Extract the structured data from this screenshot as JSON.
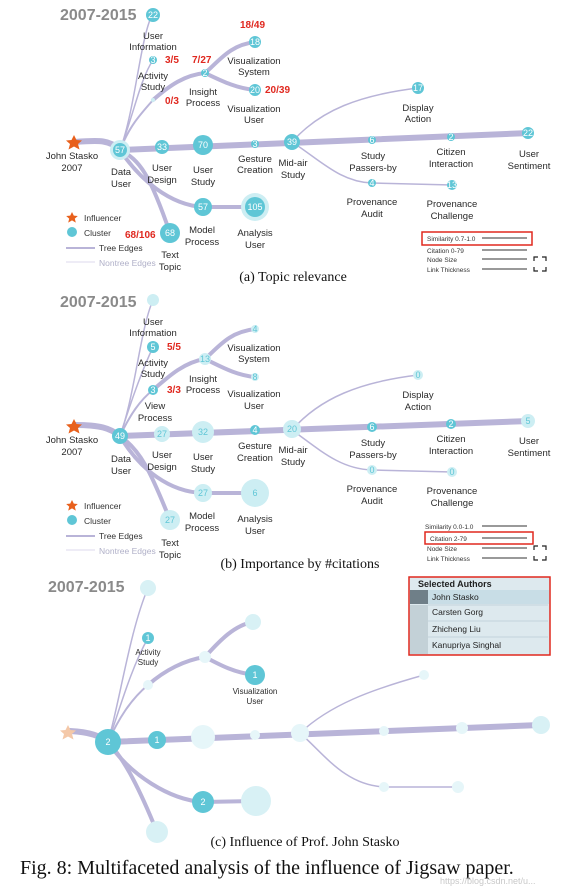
{
  "figure_caption": "Fig. 8: Multifaceted analysis of the influence of Jigsaw paper.",
  "watermark": "https://blog.csdn.net/u...",
  "colors": {
    "edge": "#b9b4d8",
    "node": "#5fc6d6",
    "node_light": "#cdeef3",
    "highlight": "#e0281f",
    "influencer": "#e8601c"
  },
  "panel_a": {
    "year_range": "2007-2015",
    "caption": "(a) Topic relevance",
    "root_label_1": "John Stasko",
    "root_label_2": "2007",
    "nodes": {
      "user_information": {
        "num": "22",
        "l1": "User",
        "l2": "Information"
      },
      "activity_study": {
        "num": "3",
        "l1": "Activity",
        "l2": "Study"
      },
      "insight_process": {
        "num": "2",
        "l1": "Insight",
        "l2": "Process"
      },
      "visualization_system": {
        "num": "18",
        "l1": "Visualization",
        "l2": "System"
      },
      "visualization_user": {
        "num": "20",
        "l1": "Visualization",
        "l2": "User"
      },
      "data_user": {
        "num": "57",
        "l1": "Data",
        "l2": "User"
      },
      "user_design": {
        "num": "33",
        "l1": "User",
        "l2": "Design"
      },
      "user_study": {
        "num": "70",
        "l1": "User",
        "l2": "Study"
      },
      "gesture_creation": {
        "num": "3",
        "l1": "Gesture",
        "l2": "Creation"
      },
      "midair_study": {
        "num": "39",
        "l1": "Mid-air",
        "l2": "Study"
      },
      "study_passersby": {
        "num": "6",
        "l1": "Study",
        "l2": "Passers-by"
      },
      "citizen_interaction": {
        "num": "2",
        "l1": "Citizen",
        "l2": "Interaction"
      },
      "user_sentiment": {
        "num": "22",
        "l1": "User",
        "l2": "Sentiment"
      },
      "display_action": {
        "num": "17",
        "l1": "Display",
        "l2": "Action"
      },
      "provenance_audit": {
        "num": "4",
        "l1": "Provenance",
        "l2": "Audit"
      },
      "provenance_challenge": {
        "num": "13",
        "l1": "Provenance",
        "l2": "Challenge"
      },
      "model_process": {
        "num": "57",
        "l1": "Model",
        "l2": "Process"
      },
      "analysis_user": {
        "num": "105",
        "l1": "Analysis",
        "l2": "User"
      },
      "text_topic": {
        "num": "68",
        "l1": "Text",
        "l2": "Topic"
      }
    },
    "ratios": {
      "r1": "18/49",
      "r2": "7/27",
      "r3": "3/5",
      "r4": "0/3",
      "r5": "20/39",
      "r6": "68/106"
    },
    "legend": {
      "influencer": "Influencer",
      "cluster": "Cluster",
      "tree": "Tree Edges",
      "nontree": "Nontree Edges"
    },
    "controls": {
      "similarity": "Similarity 0.7-1.0",
      "citation": "Citation 0-79",
      "node_size": "Node Size",
      "link_thickness": "Link Thickness"
    }
  },
  "panel_b": {
    "year_range": "2007-2015",
    "caption": "(b) Importance by #citations",
    "root_label_1": "John Stasko",
    "root_label_2": "2007",
    "nodes": {
      "user_information": {
        "l1": "User",
        "l2": "Information"
      },
      "activity_study": {
        "num": "5",
        "l1": "Activity",
        "l2": "Study"
      },
      "insight_process": {
        "num": "13",
        "l1": "Insight",
        "l2": "Process"
      },
      "visualization_system": {
        "num": "4",
        "l1": "Visualization",
        "l2": "System"
      },
      "visualization_user": {
        "num": "8",
        "l1": "Visualization",
        "l2": "User"
      },
      "view_process": {
        "num": "3",
        "l1": "View",
        "l2": "Process"
      },
      "data_user": {
        "num": "49",
        "l1": "Data",
        "l2": "User"
      },
      "user_design": {
        "num": "27",
        "l1": "User",
        "l2": "Design"
      },
      "user_study": {
        "num": "32",
        "l1": "User",
        "l2": "Study"
      },
      "gesture_creation": {
        "num": "4",
        "l1": "Gesture",
        "l2": "Creation"
      },
      "midair_study": {
        "num": "20",
        "l1": "Mid-air",
        "l2": "Study"
      },
      "study_passersby": {
        "num": "6",
        "l1": "Study",
        "l2": "Passers-by"
      },
      "citizen_interaction": {
        "num": "2",
        "l1": "Citizen",
        "l2": "Interaction"
      },
      "user_sentiment": {
        "num": "5",
        "l1": "User",
        "l2": "Sentiment"
      },
      "display_action": {
        "num": "0",
        "l1": "Display",
        "l2": "Action"
      },
      "provenance_audit": {
        "num": "0",
        "l1": "Provenance",
        "l2": "Audit"
      },
      "provenance_challenge": {
        "num": "0",
        "l1": "Provenance",
        "l2": "Challenge"
      },
      "model_process": {
        "num": "27",
        "l1": "Model",
        "l2": "Process"
      },
      "analysis_user": {
        "num": "6",
        "l1": "Analysis",
        "l2": "User"
      },
      "text_topic": {
        "num": "27",
        "l1": "Text",
        "l2": "Topic"
      }
    },
    "ratios": {
      "r1": "5/5",
      "r2": "3/3"
    },
    "legend": {
      "influencer": "Influencer",
      "cluster": "Cluster",
      "tree": "Tree Edges",
      "nontree": "Nontree Edges"
    },
    "controls": {
      "similarity": "Similarity 0.0-1.0",
      "citation": "Citation 2-79",
      "node_size": "Node Size",
      "link_thickness": "Link Thickness"
    }
  },
  "panel_c": {
    "year_range": "2007-2015",
    "caption": "(c) Influence of Prof. John Stasko",
    "nodes": {
      "activity_study": {
        "num": "1",
        "l1": "Activity",
        "l2": "Study"
      },
      "visualization_user": {
        "num": "1",
        "l1": "Visualization",
        "l2": "User"
      },
      "data_user": {
        "num": "2"
      },
      "user_design": {
        "num": "1"
      },
      "model_process": {
        "num": "2"
      }
    },
    "selected_authors": {
      "title": "Selected Authors",
      "authors": [
        "John Stasko",
        "Carsten Gorg",
        "Zhicheng Liu",
        "Kanupriya Singhal"
      ]
    }
  }
}
